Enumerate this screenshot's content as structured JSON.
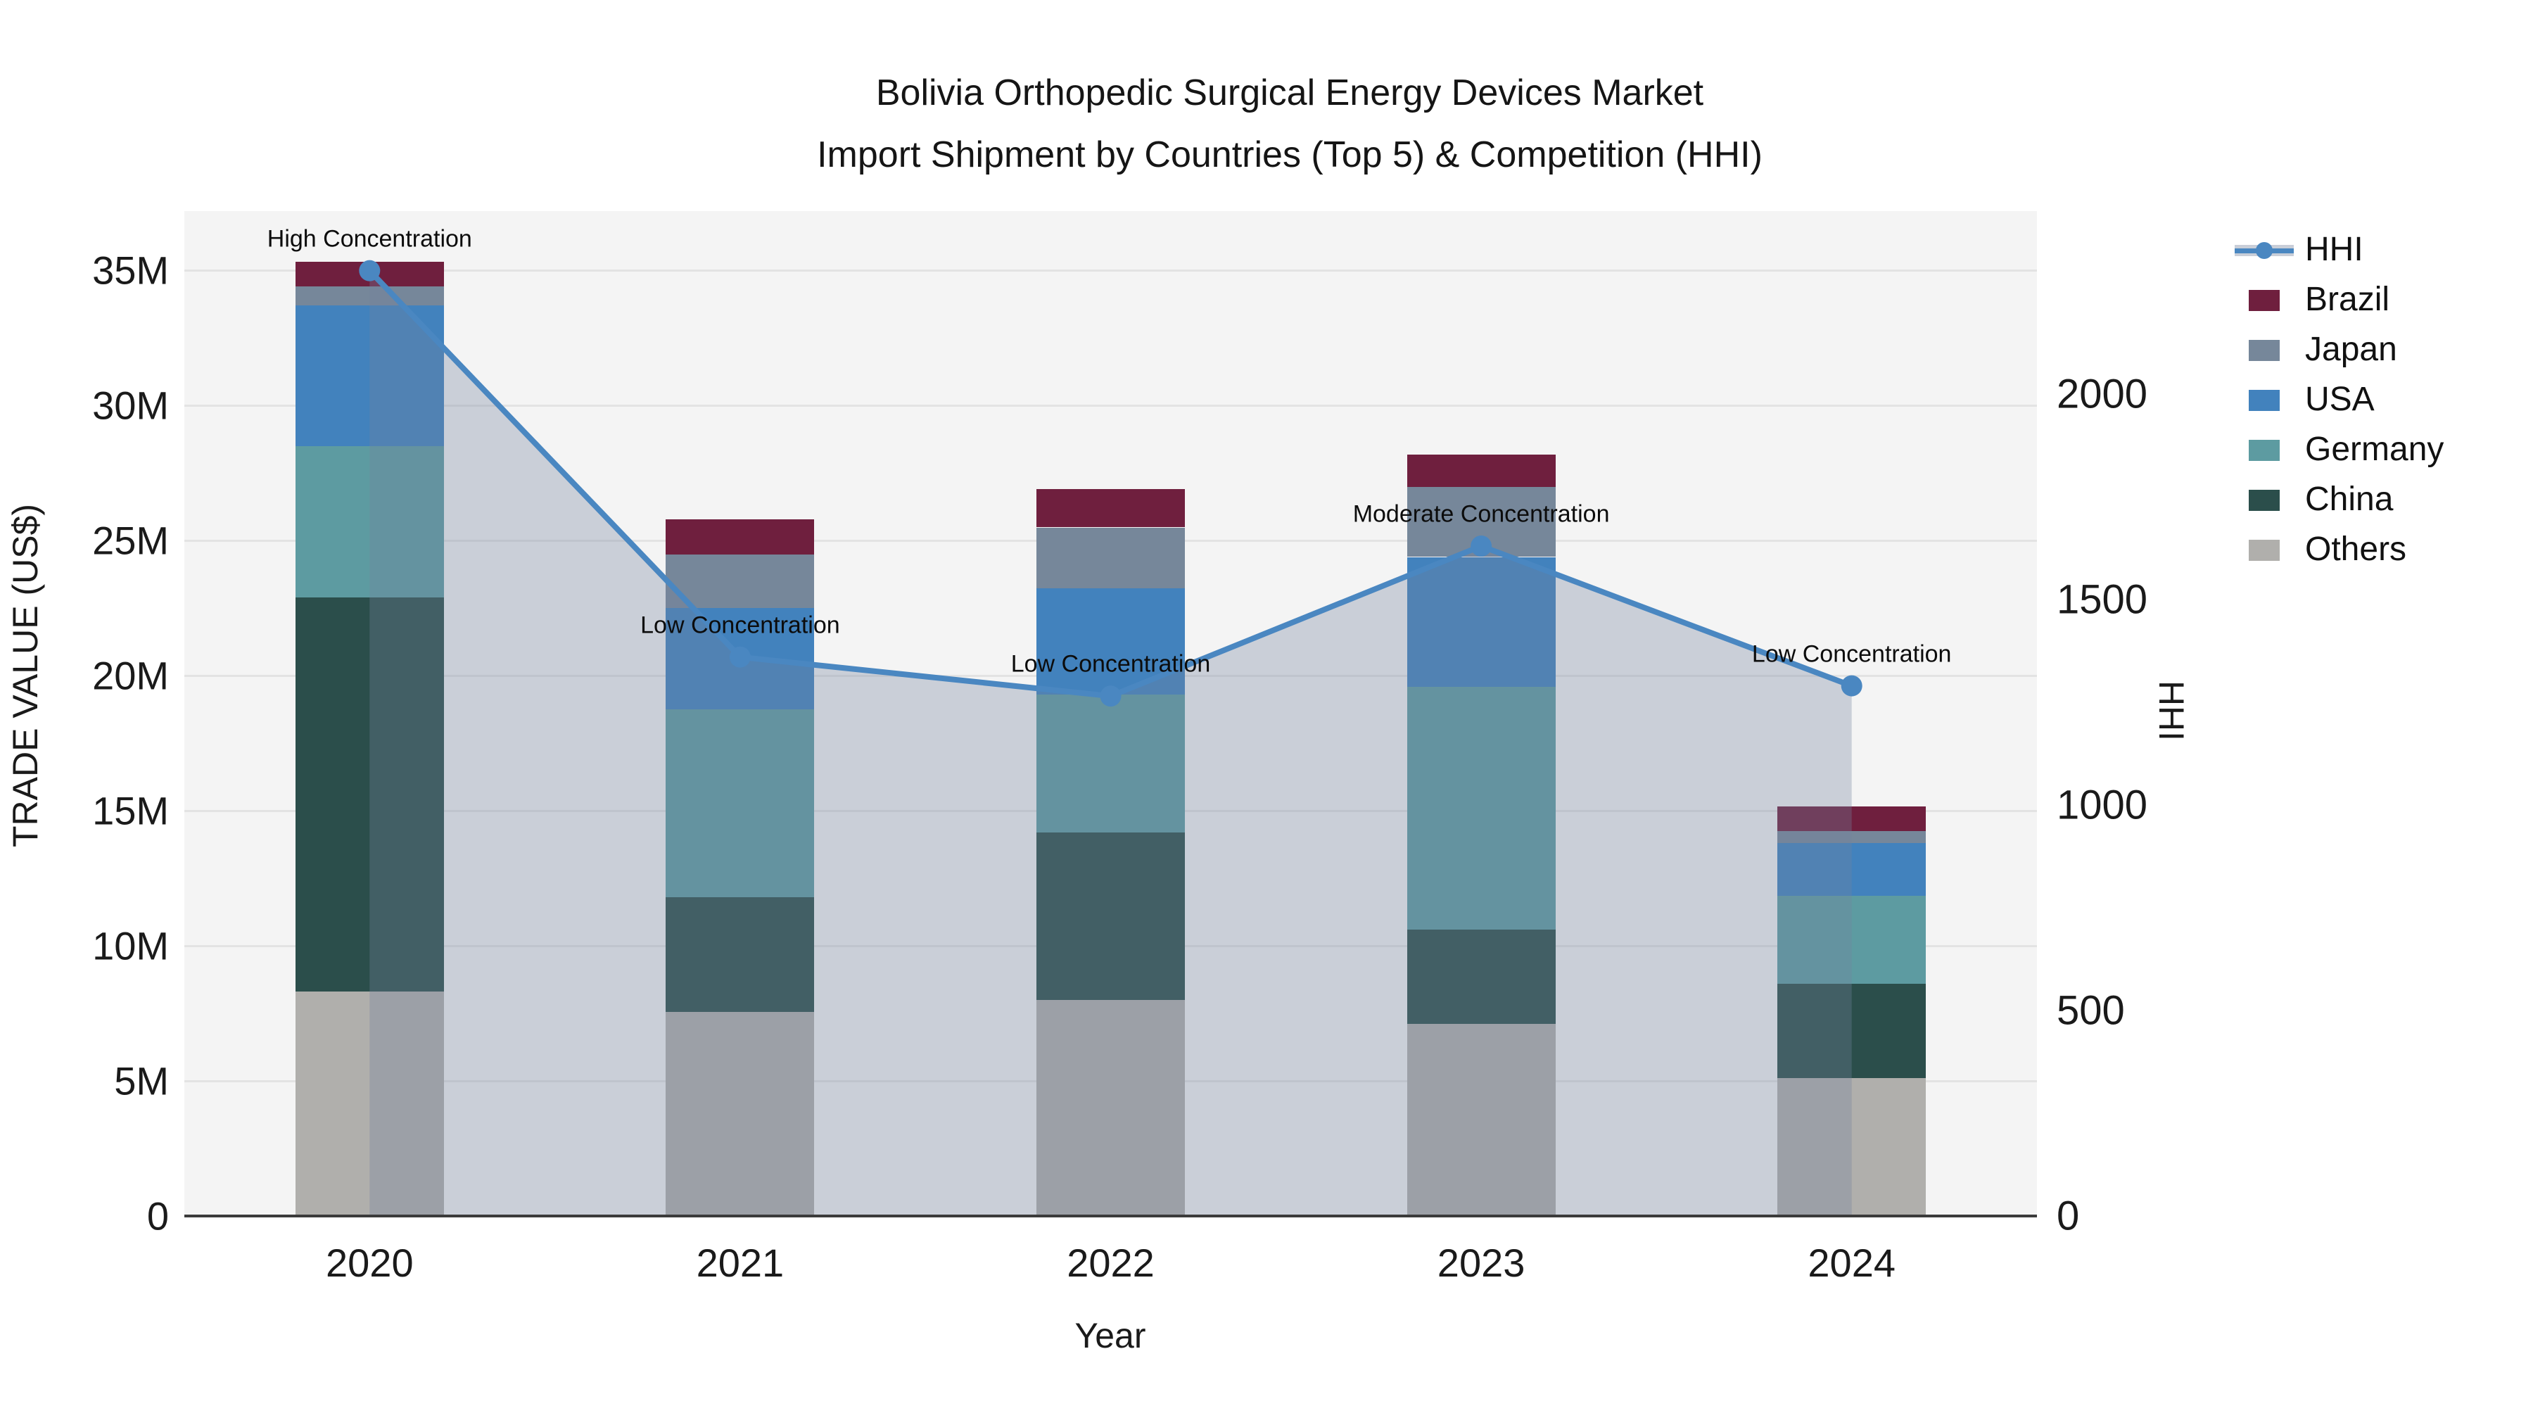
{
  "title_line1": "Bolivia Orthopedic Surgical Energy Devices Market",
  "title_line2": "Import Shipment by Countries (Top 5) & Competition (HHI)",
  "chart_data": {
    "type": "bar",
    "subtype": "stacked-bars-with-line",
    "categories": [
      "2020",
      "2021",
      "2022",
      "2023",
      "2024"
    ],
    "series": [
      {
        "name": "Others",
        "color": "#b0afac",
        "values": [
          8.3,
          7.55,
          8.0,
          7.1,
          5.1
        ]
      },
      {
        "name": "China",
        "color": "#2b4e4b",
        "values": [
          14.6,
          4.25,
          6.2,
          3.5,
          3.5
        ]
      },
      {
        "name": "Germany",
        "color": "#5d9ba1",
        "values": [
          5.6,
          6.95,
          5.1,
          9.0,
          3.25
        ]
      },
      {
        "name": "USA",
        "color": "#4282bd",
        "values": [
          5.2,
          3.75,
          3.95,
          4.8,
          1.95
        ]
      },
      {
        "name": "Japan",
        "color": "#76879a",
        "values": [
          0.7,
          2.0,
          2.25,
          2.6,
          0.45
        ]
      },
      {
        "name": "Brazil",
        "color": "#6f1f3e",
        "values": [
          0.9,
          1.3,
          1.4,
          1.2,
          0.9
        ]
      }
    ],
    "line": {
      "name": "HHI",
      "color": "#4a87c1",
      "fill_color": "rgba(115,130,158,0.32)",
      "values": [
        2300,
        1360,
        1265,
        1630,
        1290
      ]
    },
    "annotations": [
      "High Concentration",
      "Low Concentration",
      "Low Concentration",
      "Moderate Concentration",
      "Low Concentration"
    ],
    "left_axis": {
      "label": "TRADE VALUE (US$)",
      "tick_values": [
        0,
        5,
        10,
        15,
        20,
        25,
        30,
        35
      ],
      "tick_labels": [
        "0",
        "5M",
        "10M",
        "15M",
        "20M",
        "25M",
        "30M",
        "35M"
      ],
      "max": 37.2
    },
    "right_axis": {
      "label": "HHI",
      "tick_values": [
        0,
        500,
        1000,
        1500,
        2000
      ],
      "tick_labels": [
        "0",
        "500",
        "1000",
        "1500",
        "2000"
      ],
      "max": 2445
    },
    "xlabel": "Year",
    "legend": [
      {
        "label": "HHI",
        "type": "line",
        "color": "#4a87c1"
      },
      {
        "label": "Brazil",
        "type": "patch",
        "color": "#6f1f3e"
      },
      {
        "label": "Japan",
        "type": "patch",
        "color": "#76879a"
      },
      {
        "label": "USA",
        "type": "patch",
        "color": "#4282bd"
      },
      {
        "label": "Germany",
        "type": "patch",
        "color": "#5d9ba1"
      },
      {
        "label": "China",
        "type": "patch",
        "color": "#2b4e4b"
      },
      {
        "label": "Others",
        "type": "patch",
        "color": "#b0afac"
      }
    ]
  }
}
